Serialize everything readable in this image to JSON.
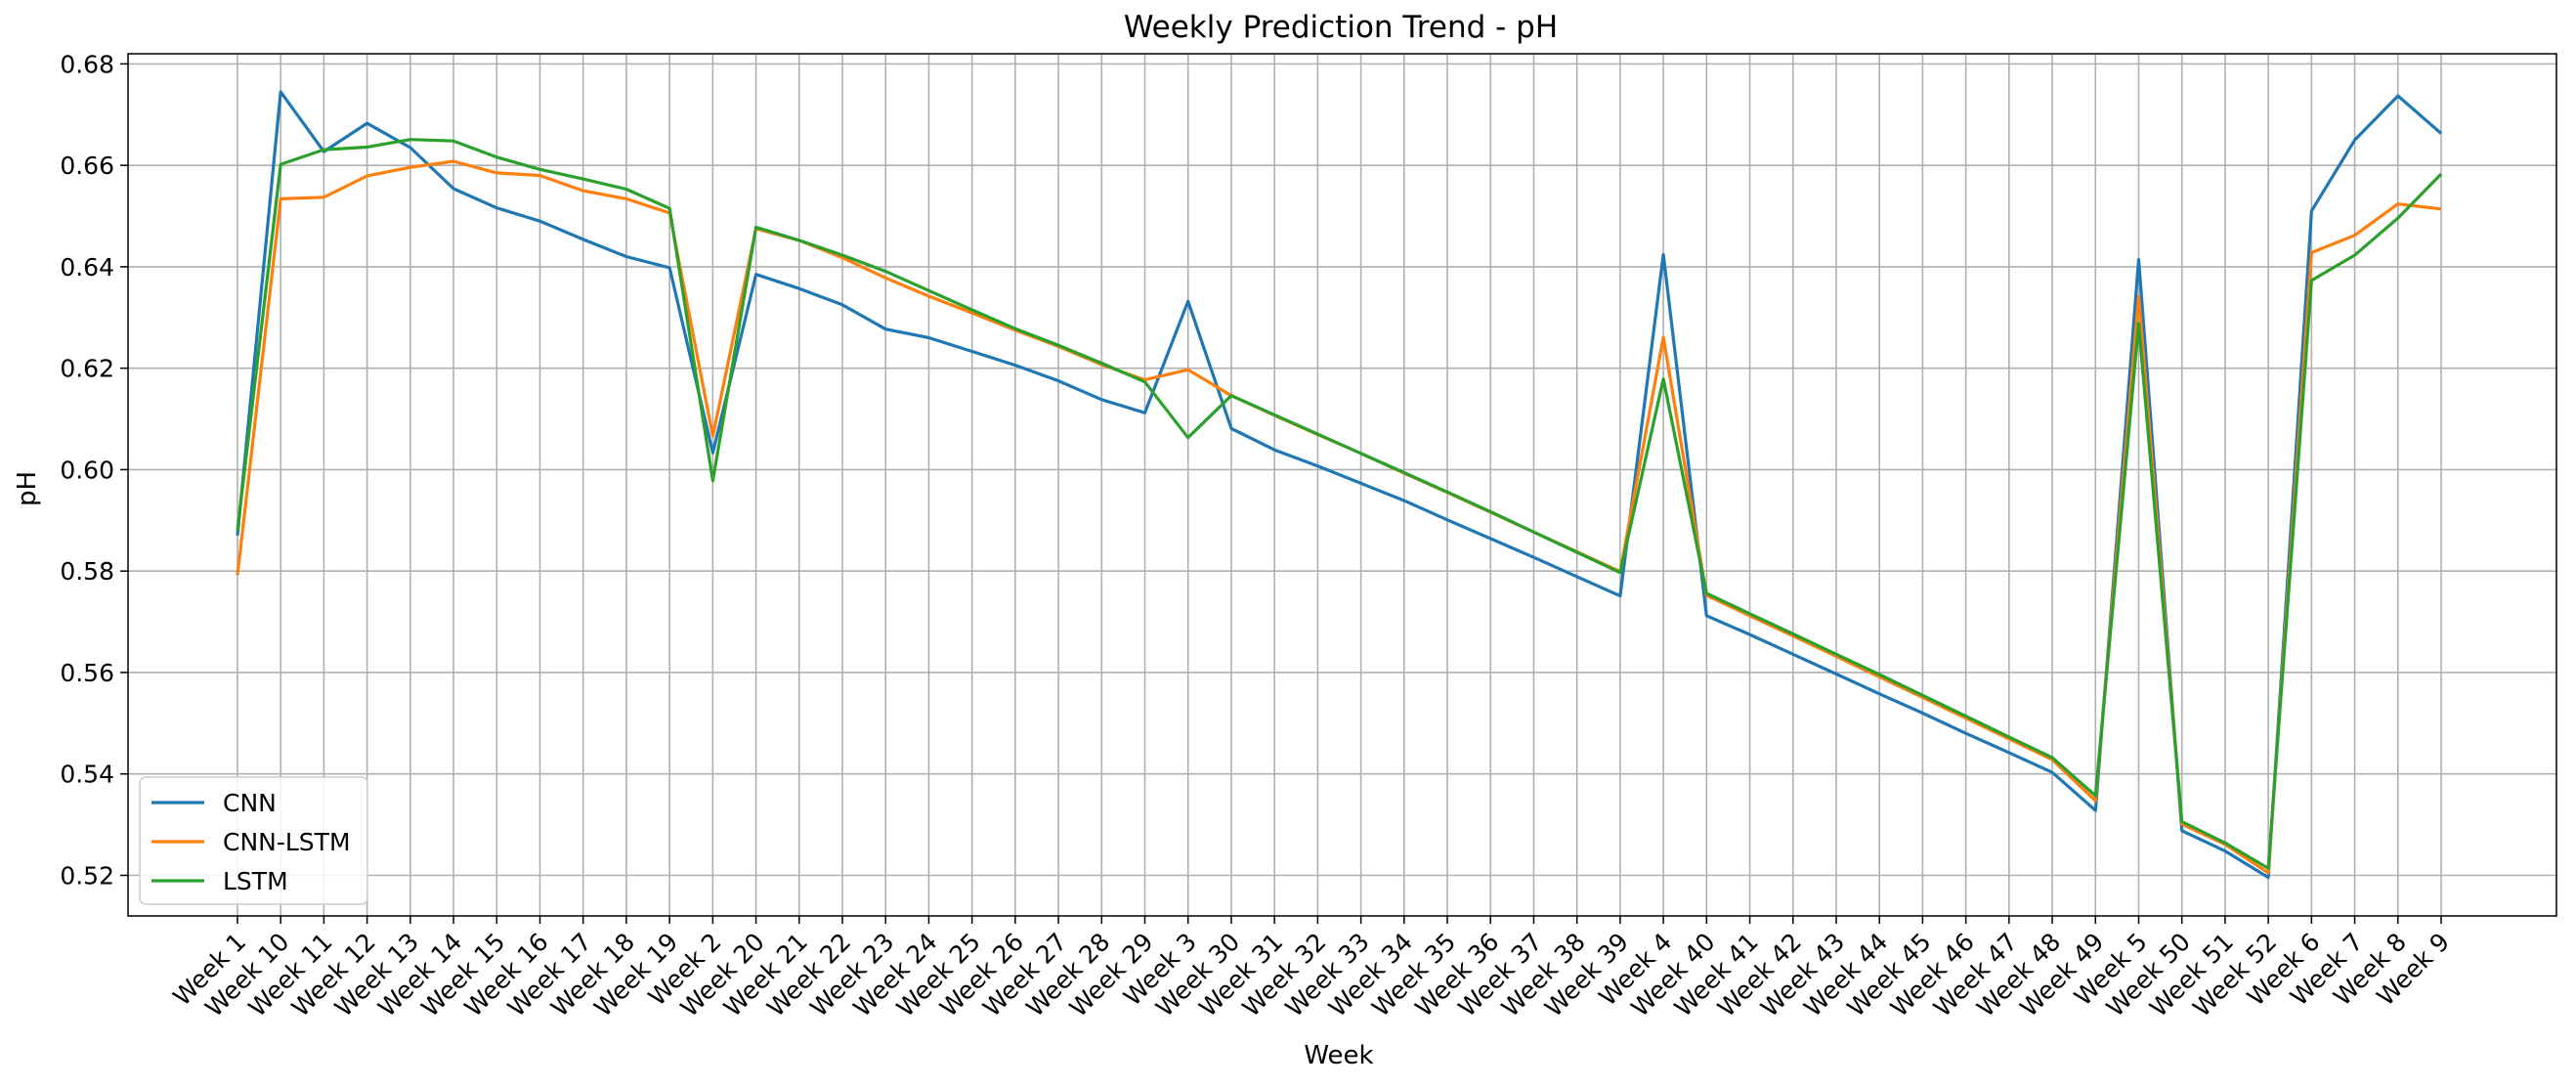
{
  "chart_data": {
    "type": "line",
    "title": "Weekly Prediction Trend - pH",
    "xlabel": "Week",
    "ylabel": "pH",
    "ylim": [
      0.512,
      0.682
    ],
    "yticks": [
      0.52,
      0.54,
      0.56,
      0.58,
      0.6,
      0.62,
      0.64,
      0.66,
      0.68
    ],
    "ytick_labels": [
      "0.52",
      "0.54",
      "0.56",
      "0.58",
      "0.60",
      "0.62",
      "0.64",
      "0.66",
      "0.68"
    ],
    "grid": true,
    "legend_position": "lower-left",
    "categories": [
      "Week 1",
      "Week 10",
      "Week 11",
      "Week 12",
      "Week 13",
      "Week 14",
      "Week 15",
      "Week 16",
      "Week 17",
      "Week 18",
      "Week 19",
      "Week 2",
      "Week 20",
      "Week 21",
      "Week 22",
      "Week 23",
      "Week 24",
      "Week 25",
      "Week 26",
      "Week 27",
      "Week 28",
      "Week 29",
      "Week 3",
      "Week 30",
      "Week 31",
      "Week 32",
      "Week 33",
      "Week 34",
      "Week 35",
      "Week 36",
      "Week 37",
      "Week 38",
      "Week 39",
      "Week 4",
      "Week 40",
      "Week 41",
      "Week 42",
      "Week 43",
      "Week 44",
      "Week 45",
      "Week 46",
      "Week 47",
      "Week 48",
      "Week 49",
      "Week 5",
      "Week 50",
      "Week 51",
      "Week 52",
      "Week 6",
      "Week 7",
      "Week 8",
      "Week 9"
    ],
    "series": [
      {
        "name": "CNN",
        "color": "#1f77b4",
        "values": [
          0.587,
          0.6745,
          0.6627,
          0.6683,
          0.6635,
          0.6554,
          0.6516,
          0.649,
          0.6454,
          0.642,
          0.6398,
          0.6033,
          0.6385,
          0.6357,
          0.6325,
          0.6277,
          0.626,
          0.6233,
          0.6206,
          0.6175,
          0.6138,
          0.6112,
          0.6332,
          0.6081,
          0.6039,
          0.6007,
          0.5973,
          0.5939,
          0.5901,
          0.5864,
          0.5827,
          0.5789,
          0.5751,
          0.6424,
          0.5712,
          0.5675,
          0.5636,
          0.5597,
          0.5558,
          0.552,
          0.548,
          0.5442,
          0.5403,
          0.5328,
          0.6414,
          0.5288,
          0.5248,
          0.5196,
          0.651,
          0.665,
          0.6737,
          0.6663
        ]
      },
      {
        "name": "CNN-LSTM",
        "color": "#ff7f0e",
        "values": [
          0.5792,
          0.6534,
          0.6537,
          0.6579,
          0.6596,
          0.6608,
          0.6585,
          0.658,
          0.655,
          0.6534,
          0.6506,
          0.6066,
          0.6475,
          0.6452,
          0.6418,
          0.6378,
          0.6342,
          0.6309,
          0.6275,
          0.6243,
          0.6207,
          0.6177,
          0.6197,
          0.6146,
          0.6107,
          0.6069,
          0.6032,
          0.5993,
          0.5955,
          0.5916,
          0.5877,
          0.5838,
          0.5799,
          0.6261,
          0.5752,
          0.5712,
          0.5672,
          0.5632,
          0.5591,
          0.5551,
          0.551,
          0.5469,
          0.5428,
          0.5347,
          0.6341,
          0.5301,
          0.5261,
          0.5205,
          0.6428,
          0.6462,
          0.6524,
          0.6514
        ]
      },
      {
        "name": "LSTM",
        "color": "#2ca02c",
        "values": [
          0.588,
          0.6602,
          0.6631,
          0.6636,
          0.6651,
          0.6648,
          0.6616,
          0.6592,
          0.6573,
          0.6553,
          0.6515,
          0.5978,
          0.6478,
          0.6452,
          0.6423,
          0.6391,
          0.6353,
          0.6315,
          0.6278,
          0.6245,
          0.621,
          0.6173,
          0.6063,
          0.6146,
          0.6108,
          0.607,
          0.6032,
          0.5994,
          0.5956,
          0.5917,
          0.5877,
          0.5837,
          0.5797,
          0.6179,
          0.5756,
          0.5716,
          0.5676,
          0.5636,
          0.5596,
          0.5555,
          0.5514,
          0.5473,
          0.5432,
          0.5357,
          0.6288,
          0.5306,
          0.5264,
          0.5214,
          0.6373,
          0.6423,
          0.6496,
          0.6583
        ]
      }
    ]
  }
}
